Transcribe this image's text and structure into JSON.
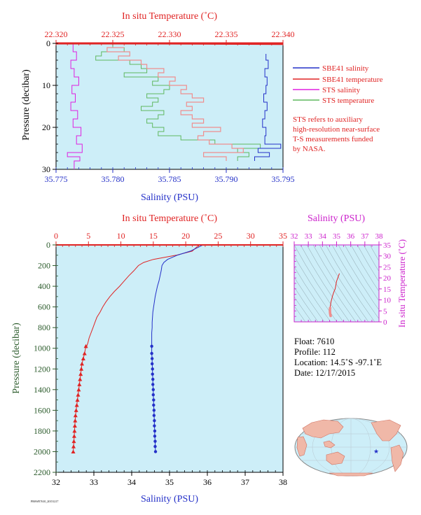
{
  "colors": {
    "plot_bg": "#cdeef8",
    "salinity": "#2430c8",
    "temperature": "#e02424",
    "temp_light": "#f08e8e",
    "sts_salinity": "#e020e0",
    "sts_temperature": "#5fb85f",
    "pressure_axis": "#2a5a2a",
    "ts_axis": "#cc22cc"
  },
  "chart_data": [
    {
      "type": "line",
      "id": "upper-profile",
      "x_top_label": "In situ Temperature (˚C)",
      "x_top_ticks": [
        "22.320",
        "22.325",
        "22.330",
        "22.335",
        "22.340"
      ],
      "x_top_range": [
        22.32,
        22.34
      ],
      "x_bottom_label": "Salinity (PSU)",
      "x_bottom_ticks": [
        "35.775",
        "35.780",
        "35.785",
        "35.790",
        "35.795"
      ],
      "x_bottom_range": [
        35.775,
        35.795
      ],
      "ylabel": "Pressure (decibar)",
      "y_ticks": [
        "0",
        "10",
        "20",
        "30"
      ],
      "ylim": [
        0,
        30
      ],
      "y_inverted": true,
      "legend": [
        {
          "label": "SBE41 salinity",
          "color": "#2430c8"
        },
        {
          "label": "SBE41 temperature",
          "color": "#e02424"
        },
        {
          "label": "STS salinity",
          "color": "#e020e0"
        },
        {
          "label": "STS temperature",
          "color": "#5fb85f"
        }
      ],
      "note": [
        "STS refers to auxiliary",
        "high-resolution near-surface",
        "T-S measurements funded",
        "by NASA."
      ],
      "series": [
        {
          "name": "SBE41 salinity",
          "axis": "salinity",
          "p": [
            2.5,
            4,
            6,
            8,
            10,
            12,
            14,
            16,
            18,
            20,
            22,
            24,
            25,
            26,
            27,
            28
          ],
          "v": [
            35.7935,
            35.7935,
            35.7937,
            35.7934,
            35.7936,
            35.7935,
            35.7933,
            35.7936,
            35.7934,
            35.7932,
            35.7935,
            35.7934,
            35.7948,
            35.7928,
            35.7938,
            35.7925
          ]
        },
        {
          "name": "SBE41 temperature",
          "axis": "temperature",
          "p": [
            0,
            0.2
          ],
          "v": [
            22.32,
            22.34
          ]
        },
        {
          "name": "STS salinity",
          "axis": "salinity",
          "p": [
            0,
            2,
            4,
            6,
            8,
            10,
            12,
            14,
            16,
            18,
            20,
            22,
            24,
            26,
            27,
            28,
            30
          ],
          "v": [
            35.7762,
            35.7765,
            35.7768,
            35.7763,
            35.7766,
            35.777,
            35.7764,
            35.7767,
            35.7763,
            35.7769,
            35.7765,
            35.7772,
            35.7768,
            35.7773,
            35.776,
            35.7771,
            35.7766
          ]
        },
        {
          "name": "STS temperature (near-surface)",
          "axis": "temperature",
          "p": [
            0,
            1,
            2,
            3,
            4,
            5,
            6,
            7,
            8,
            9,
            10,
            11,
            12,
            13,
            14,
            15,
            16,
            17,
            18,
            19,
            20,
            21,
            22,
            23,
            24,
            25,
            26,
            27,
            28
          ],
          "v": [
            22.321,
            22.325,
            22.326,
            22.324,
            22.3235,
            22.3265,
            22.3275,
            22.328,
            22.326,
            22.329,
            22.3285,
            22.33,
            22.3295,
            22.328,
            22.329,
            22.3285,
            22.3275,
            22.3295,
            22.329,
            22.328,
            22.3285,
            22.3295,
            22.329,
            22.331,
            22.334,
            22.338,
            22.336,
            22.337,
            22.336
          ]
        },
        {
          "name": "STS salinity (light)",
          "axis": "salinity",
          "p": [
            1,
            2,
            3,
            4,
            5,
            6,
            7,
            8,
            9,
            10,
            11,
            12,
            13,
            14,
            15,
            16,
            17,
            18,
            19,
            20,
            21,
            22,
            23,
            24,
            25,
            26,
            27,
            28
          ],
          "v": [
            35.781,
            35.7795,
            35.7815,
            35.7805,
            35.7825,
            35.783,
            35.7845,
            35.784,
            35.7855,
            35.785,
            35.7865,
            35.786,
            35.787,
            35.788,
            35.7865,
            35.787,
            35.786,
            35.787,
            35.788,
            35.787,
            35.7895,
            35.788,
            35.7875,
            35.7885,
            35.7905,
            35.7915,
            35.788,
            35.79
          ]
        }
      ]
    },
    {
      "type": "line",
      "id": "lower-profile",
      "x_top_label": "In situ Temperature (˚C)",
      "x_top_ticks": [
        "0",
        "5",
        "10",
        "15",
        "20",
        "25",
        "30",
        "35"
      ],
      "x_top_range": [
        0,
        35
      ],
      "x_bottom_label": "Salinity (PSU)",
      "x_bottom_ticks": [
        "32",
        "33",
        "34",
        "35",
        "36",
        "37",
        "38"
      ],
      "x_bottom_range": [
        32,
        38
      ],
      "ylabel": "Pressure (decibar)",
      "y_ticks": [
        "0",
        "200",
        "400",
        "600",
        "800",
        "1000",
        "1200",
        "1400",
        "1600",
        "1800",
        "2000",
        "2200"
      ],
      "ylim": [
        0,
        2200
      ],
      "y_inverted": true,
      "series": [
        {
          "name": "Temperature",
          "axis": "temperature",
          "p": [
            0,
            5,
            20,
            60,
            100,
            140,
            170,
            200,
            250,
            300,
            350,
            400,
            450,
            500,
            550,
            600,
            650,
            700,
            750,
            800,
            850,
            900,
            950,
            1000
          ],
          "v": [
            21.8,
            22.0,
            21.7,
            21.0,
            18.5,
            15.0,
            13.5,
            12.7,
            12.0,
            11.2,
            10.5,
            9.8,
            9.0,
            8.3,
            7.7,
            7.2,
            6.8,
            6.3,
            6.0,
            5.7,
            5.4,
            5.1,
            4.9,
            4.6
          ]
        },
        {
          "name": "Temperature (deep samples)",
          "axis": "temperature",
          "p": [
            980,
            1050,
            1100,
            1150,
            1200,
            1250,
            1300,
            1350,
            1400,
            1450,
            1500,
            1550,
            1600,
            1650,
            1700,
            1750,
            1800,
            1850,
            1900,
            1950,
            2000
          ],
          "v": [
            4.6,
            4.4,
            4.2,
            4.0,
            3.9,
            3.8,
            3.7,
            3.6,
            3.5,
            3.4,
            3.3,
            3.2,
            3.1,
            3.0,
            2.95,
            2.9,
            2.85,
            2.8,
            2.75,
            2.7,
            2.65
          ]
        },
        {
          "name": "Salinity",
          "axis": "salinity",
          "p": [
            0,
            5,
            60,
            100,
            140,
            170,
            200,
            250,
            300,
            350,
            400,
            450,
            500,
            550,
            600,
            650,
            700,
            750,
            800,
            850,
            900,
            950,
            1000
          ],
          "v": [
            35.85,
            35.86,
            35.55,
            35.2,
            34.95,
            34.85,
            34.8,
            34.78,
            34.75,
            34.72,
            34.68,
            34.65,
            34.62,
            34.6,
            34.58,
            34.56,
            34.55,
            34.54,
            34.54,
            34.53,
            34.53,
            34.53,
            34.53
          ]
        },
        {
          "name": "Salinity (deep samples)",
          "axis": "salinity",
          "p": [
            980,
            1050,
            1100,
            1150,
            1200,
            1250,
            1300,
            1350,
            1400,
            1450,
            1500,
            1550,
            1600,
            1650,
            1700,
            1750,
            1800,
            1850,
            1900,
            1950,
            2000
          ],
          "v": [
            34.53,
            34.53,
            34.54,
            34.54,
            34.55,
            34.55,
            34.56,
            34.56,
            34.57,
            34.57,
            34.58,
            34.58,
            34.59,
            34.59,
            34.6,
            34.6,
            34.61,
            34.61,
            34.62,
            34.62,
            34.63
          ]
        }
      ]
    },
    {
      "type": "scatter",
      "id": "ts-diagram",
      "x_top_label": "Salinity (PSU)",
      "x_top_ticks": [
        "32",
        "33",
        "34",
        "35",
        "36",
        "37",
        "38"
      ],
      "x_range": [
        32,
        38
      ],
      "ylabel": "In situ Temperature (˚C)",
      "y_ticks": [
        "0",
        "5",
        "10",
        "15",
        "20",
        "25",
        "30",
        "35"
      ],
      "ylim": [
        0,
        35
      ],
      "points": {
        "s": [
          35.2,
          35.0,
          34.9,
          34.8,
          34.75,
          34.7,
          34.65,
          34.6,
          34.58,
          34.55,
          34.54,
          34.53,
          34.53,
          34.53,
          34.54,
          34.55,
          34.56,
          34.57,
          34.58
        ],
        "t": [
          22.0,
          18.5,
          15.0,
          13.5,
          12.5,
          11.5,
          10.2,
          9.0,
          8.0,
          7.0,
          6.3,
          5.6,
          5.0,
          4.5,
          4.0,
          3.6,
          3.3,
          3.0,
          2.7
        ]
      }
    }
  ],
  "float_info": {
    "float": "Float:  7610",
    "profile": "Profile:  112",
    "location": "Location:  14.5˚S  -97.1˚E",
    "date": "Date:  12/17/2015"
  },
  "footer": {
    "tiny_id": "PRSWE7610_20151217"
  },
  "map": {
    "marker": "★"
  }
}
